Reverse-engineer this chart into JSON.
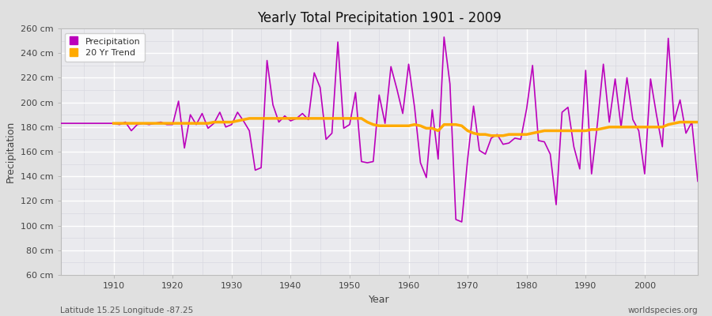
{
  "title": "Yearly Total Precipitation 1901 - 2009",
  "xlabel": "Year",
  "ylabel": "Precipitation",
  "bottom_left_label": "Latitude 15.25 Longitude -87.25",
  "bottom_right_label": "worldspecies.org",
  "precipitation_color": "#bb00bb",
  "trend_color": "#ffaa00",
  "fig_bg_color": "#e0e0e0",
  "plot_bg_color": "#eaeaee",
  "grid_major_color": "#ffffff",
  "grid_minor_color": "#d8d8e0",
  "ylim": [
    60,
    260
  ],
  "ytick_step": 20,
  "xlim_left": 1901,
  "xlim_right": 2009,
  "years": [
    1901,
    1902,
    1903,
    1904,
    1905,
    1906,
    1907,
    1908,
    1909,
    1910,
    1911,
    1912,
    1913,
    1914,
    1915,
    1916,
    1917,
    1918,
    1919,
    1920,
    1921,
    1922,
    1923,
    1924,
    1925,
    1926,
    1927,
    1928,
    1929,
    1930,
    1931,
    1932,
    1933,
    1934,
    1935,
    1936,
    1937,
    1938,
    1939,
    1940,
    1941,
    1942,
    1943,
    1944,
    1945,
    1946,
    1947,
    1948,
    1949,
    1950,
    1951,
    1952,
    1953,
    1954,
    1955,
    1956,
    1957,
    1958,
    1959,
    1960,
    1961,
    1962,
    1963,
    1964,
    1965,
    1966,
    1967,
    1968,
    1969,
    1970,
    1971,
    1972,
    1973,
    1974,
    1975,
    1976,
    1977,
    1978,
    1979,
    1980,
    1981,
    1982,
    1983,
    1984,
    1985,
    1986,
    1987,
    1988,
    1989,
    1990,
    1991,
    1992,
    1993,
    1994,
    1995,
    1996,
    1997,
    1998,
    1999,
    2000,
    2001,
    2002,
    2003,
    2004,
    2005,
    2006,
    2007,
    2008,
    2009
  ],
  "precip_values": [
    183,
    183,
    183,
    183,
    183,
    183,
    183,
    183,
    183,
    183,
    182,
    184,
    177,
    182,
    183,
    182,
    183,
    184,
    182,
    182,
    201,
    163,
    190,
    182,
    191,
    179,
    183,
    192,
    180,
    182,
    192,
    185,
    177,
    145,
    147,
    234,
    198,
    184,
    189,
    185,
    187,
    191,
    186,
    224,
    212,
    170,
    175,
    249,
    179,
    182,
    208,
    152,
    151,
    152,
    206,
    183,
    229,
    211,
    191,
    231,
    196,
    151,
    139,
    194,
    154,
    253,
    215,
    105,
    103,
    154,
    197,
    161,
    158,
    171,
    174,
    166,
    167,
    171,
    170,
    195,
    230,
    169,
    168,
    158,
    117,
    192,
    196,
    164,
    146,
    226,
    142,
    183,
    231,
    184,
    219,
    180,
    220,
    186,
    177,
    142,
    219,
    190,
    164,
    252,
    185,
    202,
    175,
    184,
    136
  ],
  "trend_values": [
    null,
    null,
    null,
    null,
    null,
    null,
    null,
    null,
    null,
    183,
    183,
    183,
    183,
    183,
    183,
    183,
    183,
    183,
    183,
    183,
    183,
    183,
    183,
    183,
    183,
    183,
    184,
    184,
    184,
    184,
    185,
    186,
    187,
    187,
    187,
    187,
    187,
    187,
    187,
    187,
    187,
    187,
    187,
    187,
    187,
    187,
    187,
    187,
    187,
    187,
    187,
    187,
    184,
    182,
    181,
    181,
    181,
    181,
    181,
    181,
    182,
    181,
    179,
    179,
    177,
    182,
    182,
    182,
    181,
    177,
    175,
    174,
    174,
    173,
    173,
    173,
    174,
    174,
    174,
    174,
    175,
    176,
    177,
    177,
    177,
    177,
    177,
    177,
    177,
    177,
    178,
    178,
    179,
    180,
    180,
    180,
    180,
    180,
    180,
    180,
    180,
    180,
    180,
    182,
    183,
    184,
    184,
    184,
    184
  ]
}
